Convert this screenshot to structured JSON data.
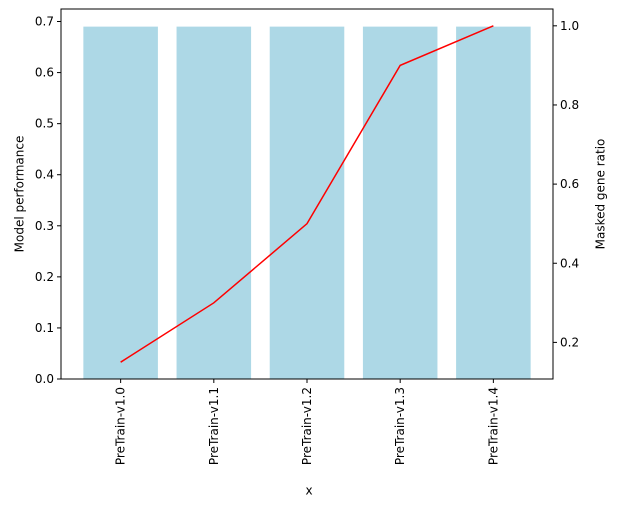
{
  "chart_data": {
    "type": "bar",
    "categories": [
      "PreTrain-v1.0",
      "PreTrain-v1.1",
      "PreTrain-v1.2",
      "PreTrain-v1.3",
      "PreTrain-v1.4"
    ],
    "xlabel": "x",
    "ylabel": "Model performance",
    "y2label": "Masked gene ratio",
    "series": [
      {
        "type": "bar",
        "color": "#add8e6",
        "values": [
          0.69,
          0.69,
          0.69,
          0.69,
          0.69
        ]
      },
      {
        "type": "line",
        "axis": "y2",
        "color": "#ff0000",
        "values": [
          0.15,
          0.3,
          0.5,
          0.9,
          1.0
        ]
      }
    ],
    "ylim": [
      0,
      0.7245
    ],
    "yticks": [
      {
        "value": 0,
        "label": "0.0"
      },
      0.1,
      0.2,
      0.3,
      0.4,
      0.5,
      0.6,
      0.7
    ],
    "y2lim": [
      0.1075,
      1.0425
    ],
    "y2ticks": [
      0.2,
      0.4,
      0.6,
      0.8,
      {
        "value": 1,
        "label": "1.0"
      }
    ],
    "grid": false
  }
}
